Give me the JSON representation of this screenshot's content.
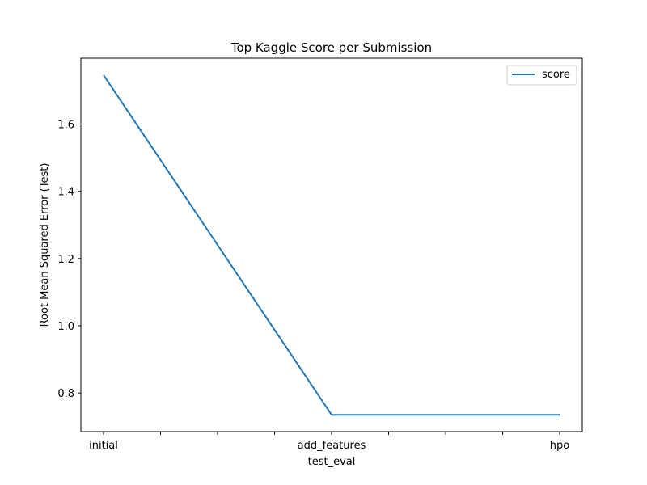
{
  "chart_data": {
    "type": "line",
    "title": "Top Kaggle Score per Submission",
    "xlabel": "test_eval",
    "ylabel": "Root Mean Squared Error (Test)",
    "categories": [
      "initial",
      "add_features",
      "hpo"
    ],
    "series": [
      {
        "name": "score",
        "values": [
          1.746,
          0.735,
          0.735
        ],
        "color": "#1f77b4"
      }
    ],
    "yticks": [
      0.8,
      1.0,
      1.2,
      1.4,
      1.6
    ],
    "ytick_labels": [
      "0.8",
      "1.0",
      "1.2",
      "1.4",
      "1.6"
    ],
    "ylim": [
      0.685,
      1.796
    ],
    "minor_xticks": 8,
    "grid": false,
    "legend_position": "top-right"
  }
}
